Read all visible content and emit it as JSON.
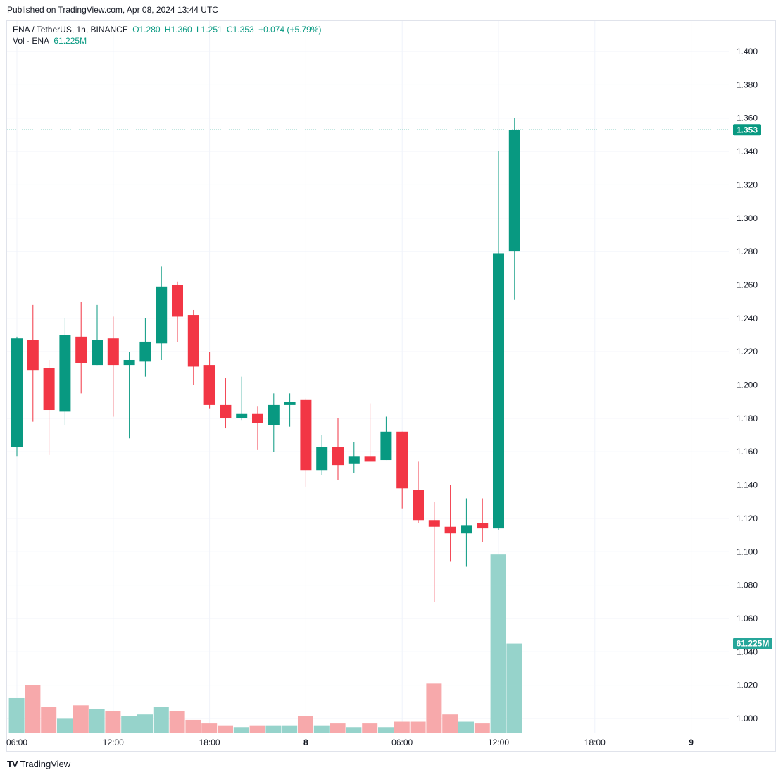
{
  "header": {
    "published": "Published on TradingView.com, Apr 08, 2024 13:44 UTC"
  },
  "legend": {
    "symbol": "ENA / TetherUS, 1h, BINANCE",
    "open": "O1.280",
    "high": "H1.360",
    "low": "L1.251",
    "close": "C1.353",
    "change": "+0.074 (+5.79%)",
    "vol_label": "Vol · ENA",
    "vol_value": "61.225M"
  },
  "footer": {
    "logo": "TV",
    "brand": "TradingView"
  },
  "colors": {
    "up": "#089981",
    "down": "#f23645",
    "vol_up": "#96d3cb",
    "vol_down": "#f7a9ab"
  },
  "chart_data": {
    "type": "candlestick",
    "title": "ENA / TetherUS, 1h, BINANCE",
    "ylim": [
      1.0,
      1.4
    ],
    "y_ticks": [
      "1.400",
      "1.380",
      "1.360",
      "1.340",
      "1.320",
      "1.300",
      "1.280",
      "1.260",
      "1.240",
      "1.220",
      "1.200",
      "1.180",
      "1.160",
      "1.140",
      "1.120",
      "1.100",
      "1.080",
      "1.060",
      "1.040",
      "1.020",
      "1.000"
    ],
    "x_ticks": [
      {
        "label": "06:00",
        "index": 0
      },
      {
        "label": "12:00",
        "index": 6
      },
      {
        "label": "18:00",
        "index": 12
      },
      {
        "label": "8",
        "index": 18
      },
      {
        "label": "06:00",
        "index": 24
      },
      {
        "label": "12:00",
        "index": 30
      },
      {
        "label": "18:00",
        "index": 36
      },
      {
        "label": "9",
        "index": 42
      }
    ],
    "last_price_label": "1.353",
    "last_volume_label": "61.225M",
    "candles": [
      {
        "o": 1.163,
        "h": 1.229,
        "l": 1.157,
        "c": 1.228,
        "v": 0.019
      },
      {
        "o": 1.227,
        "h": 1.248,
        "l": 1.178,
        "c": 1.209,
        "v": 0.026
      },
      {
        "o": 1.21,
        "h": 1.215,
        "l": 1.158,
        "c": 1.185,
        "v": 0.014
      },
      {
        "o": 1.184,
        "h": 1.24,
        "l": 1.176,
        "c": 1.23,
        "v": 0.008
      },
      {
        "o": 1.229,
        "h": 1.25,
        "l": 1.195,
        "c": 1.213,
        "v": 0.015
      },
      {
        "o": 1.212,
        "h": 1.248,
        "l": 1.212,
        "c": 1.227,
        "v": 0.013
      },
      {
        "o": 1.228,
        "h": 1.241,
        "l": 1.181,
        "c": 1.212,
        "v": 0.012
      },
      {
        "o": 1.212,
        "h": 1.22,
        "l": 1.168,
        "c": 1.215,
        "v": 0.009
      },
      {
        "o": 1.214,
        "h": 1.24,
        "l": 1.205,
        "c": 1.226,
        "v": 0.01
      },
      {
        "o": 1.225,
        "h": 1.271,
        "l": 1.215,
        "c": 1.259,
        "v": 0.014
      },
      {
        "o": 1.26,
        "h": 1.262,
        "l": 1.226,
        "c": 1.241,
        "v": 0.012
      },
      {
        "o": 1.242,
        "h": 1.245,
        "l": 1.2,
        "c": 1.211,
        "v": 0.007
      },
      {
        "o": 1.212,
        "h": 1.22,
        "l": 1.186,
        "c": 1.188,
        "v": 0.005
      },
      {
        "o": 1.188,
        "h": 1.204,
        "l": 1.174,
        "c": 1.18,
        "v": 0.004
      },
      {
        "o": 1.18,
        "h": 1.205,
        "l": 1.179,
        "c": 1.183,
        "v": 0.003
      },
      {
        "o": 1.183,
        "h": 1.187,
        "l": 1.161,
        "c": 1.177,
        "v": 0.004
      },
      {
        "o": 1.176,
        "h": 1.195,
        "l": 1.16,
        "c": 1.188,
        "v": 0.004
      },
      {
        "o": 1.188,
        "h": 1.195,
        "l": 1.175,
        "c": 1.19,
        "v": 0.004
      },
      {
        "o": 1.191,
        "h": 1.192,
        "l": 1.139,
        "c": 1.149,
        "v": 0.009
      },
      {
        "o": 1.149,
        "h": 1.17,
        "l": 1.146,
        "c": 1.163,
        "v": 0.004
      },
      {
        "o": 1.163,
        "h": 1.18,
        "l": 1.143,
        "c": 1.152,
        "v": 0.005
      },
      {
        "o": 1.153,
        "h": 1.166,
        "l": 1.147,
        "c": 1.157,
        "v": 0.003
      },
      {
        "o": 1.157,
        "h": 1.189,
        "l": 1.154,
        "c": 1.154,
        "v": 0.005
      },
      {
        "o": 1.155,
        "h": 1.181,
        "l": 1.155,
        "c": 1.172,
        "v": 0.003
      },
      {
        "o": 1.172,
        "h": 1.172,
        "l": 1.126,
        "c": 1.138,
        "v": 0.006
      },
      {
        "o": 1.137,
        "h": 1.154,
        "l": 1.117,
        "c": 1.119,
        "v": 0.006
      },
      {
        "o": 1.119,
        "h": 1.13,
        "l": 1.07,
        "c": 1.115,
        "v": 0.027
      },
      {
        "o": 1.115,
        "h": 1.14,
        "l": 1.094,
        "c": 1.111,
        "v": 0.01
      },
      {
        "o": 1.111,
        "h": 1.132,
        "l": 1.091,
        "c": 1.116,
        "v": 0.006
      },
      {
        "o": 1.117,
        "h": 1.132,
        "l": 1.106,
        "c": 1.114,
        "v": 0.005
      },
      {
        "o": 1.114,
        "h": 1.34,
        "l": 1.113,
        "c": 1.279,
        "v": 0.098
      },
      {
        "o": 1.28,
        "h": 1.36,
        "l": 1.251,
        "c": 1.353,
        "v": 0.049
      }
    ]
  }
}
